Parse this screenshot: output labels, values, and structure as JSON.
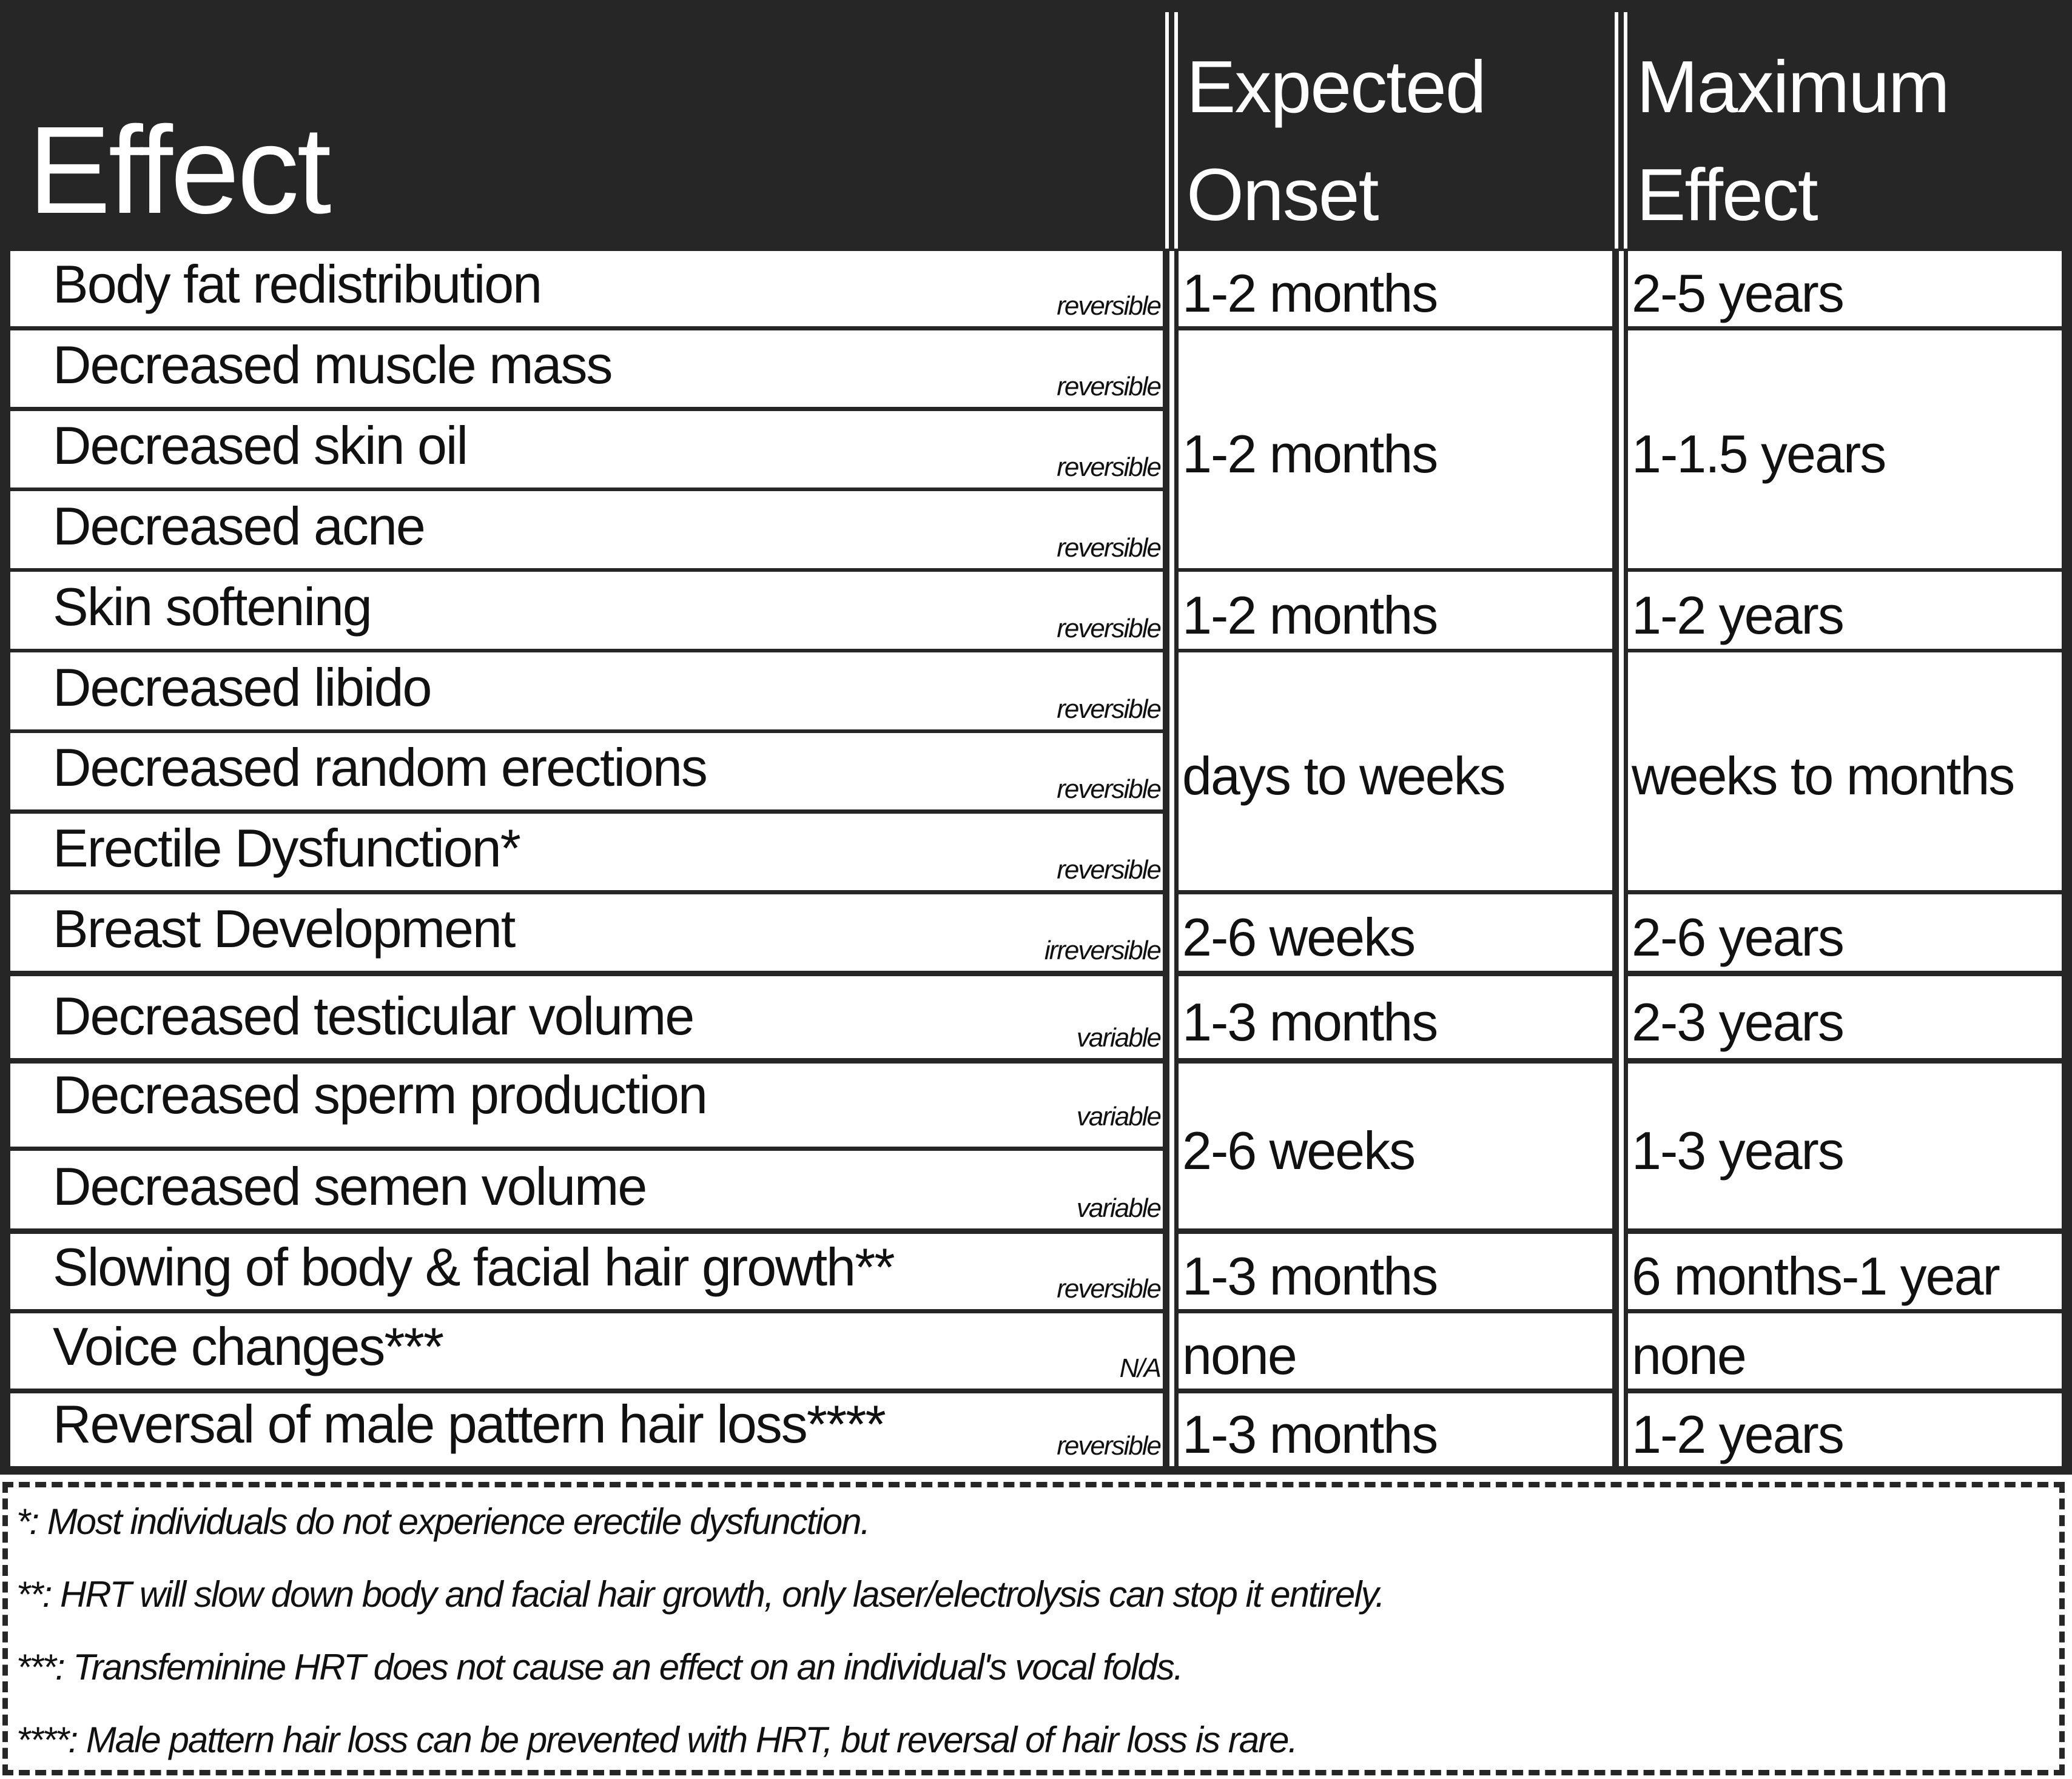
{
  "header": {
    "effect": "Effect",
    "onset_line1": "Expected",
    "onset_line2": "Onset",
    "max_line1": "Maximum",
    "max_line2": "Effect"
  },
  "rows": [
    {
      "effect": "Body fat redistribution",
      "tag": "reversible"
    },
    {
      "effect": "Decreased muscle mass",
      "tag": "reversible"
    },
    {
      "effect": "Decreased skin oil",
      "tag": "reversible"
    },
    {
      "effect": "Decreased acne",
      "tag": "reversible"
    },
    {
      "effect": "Skin softening",
      "tag": "reversible"
    },
    {
      "effect": "Decreased libido",
      "tag": "reversible"
    },
    {
      "effect": "Decreased random erections",
      "tag": "reversible"
    },
    {
      "effect": "Erectile Dysfunction*",
      "tag": "reversible"
    },
    {
      "effect": "Breast Development",
      "tag": "irreversible"
    },
    {
      "effect": "Decreased testicular volume",
      "tag": "variable"
    },
    {
      "effect": "Decreased sperm production",
      "tag": "variable"
    },
    {
      "effect": "Decreased semen volume",
      "tag": "variable"
    },
    {
      "effect": "Slowing of body & facial hair growth**",
      "tag": "reversible"
    },
    {
      "effect": "Voice changes***",
      "tag": "N/A"
    },
    {
      "effect": "Reversal of male pattern hair loss****",
      "tag": "reversible"
    }
  ],
  "timings": [
    {
      "rows": "1",
      "onset": "1-2 months",
      "max": "2-5 years"
    },
    {
      "rows": "2-4",
      "onset": "1-2 months",
      "max": "1-1.5 years"
    },
    {
      "rows": "5",
      "onset": "1-2 months",
      "max": "1-2 years"
    },
    {
      "rows": "6-8",
      "onset": "days to weeks",
      "max": "weeks to months"
    },
    {
      "rows": "9",
      "onset": "2-6 weeks",
      "max": "2-6 years"
    },
    {
      "rows": "10",
      "onset": "1-3 months",
      "max": "2-3 years"
    },
    {
      "rows": "11-12",
      "onset": "2-6 weeks",
      "max": "1-3 years"
    },
    {
      "rows": "13",
      "onset": "1-3 months",
      "max": "6 months-1 year"
    },
    {
      "rows": "14",
      "onset": "none",
      "max": "none"
    },
    {
      "rows": "15",
      "onset": "1-3 months",
      "max": "1-2 years"
    }
  ],
  "footnotes": [
    "*: Most individuals do not experience erectile dysfunction.",
    "**: HRT will slow down body and facial hair growth, only laser/electrolysis can stop it entirely.",
    "***: Transfeminine HRT does not cause an effect on an individual's vocal folds.",
    "****: Male pattern hair loss can be prevented with HRT, but reversal of hair loss is rare."
  ],
  "colors": {
    "header_bg": "#262626",
    "cell_bg": "#ffffff",
    "text": "#111111"
  }
}
